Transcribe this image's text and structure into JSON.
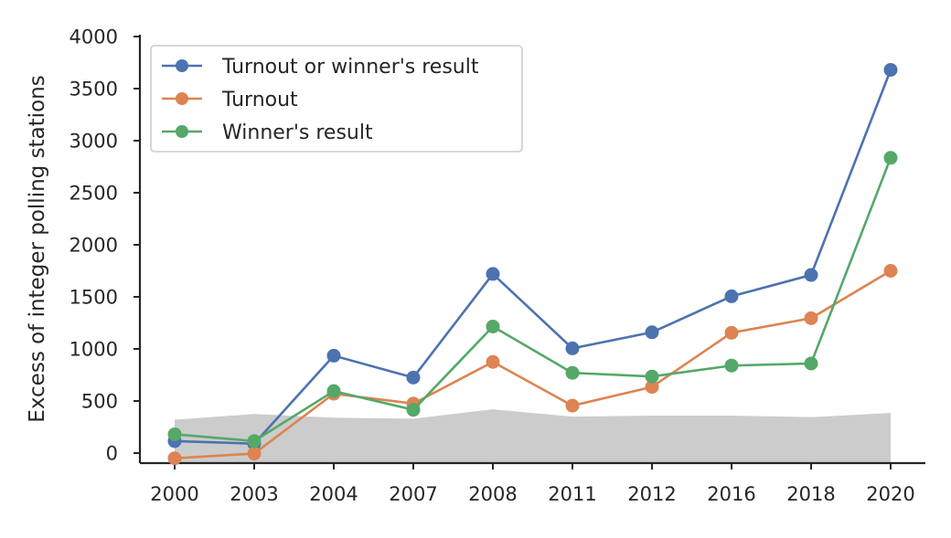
{
  "chart_data": {
    "type": "line",
    "title": "",
    "xlabel": "",
    "ylabel": "Excess of integer polling stations",
    "categories": [
      "2000",
      "2003",
      "2004",
      "2007",
      "2008",
      "2011",
      "2012",
      "2016",
      "2018",
      "2020"
    ],
    "ylim": [
      -100,
      4000
    ],
    "yticks": [
      0,
      500,
      1000,
      1500,
      2000,
      2500,
      3000,
      3500,
      4000
    ],
    "ytick_labels": [
      "0",
      "500",
      "1000",
      "1500",
      "2000",
      "2500",
      "3000",
      "3500",
      "4000"
    ],
    "grid": false,
    "legend_position": "top-left",
    "series": [
      {
        "name": "Turnout or winner's result",
        "color": "#4c72b0",
        "values": [
          115,
          90,
          935,
          725,
          1720,
          1005,
          1160,
          1505,
          1710,
          3680
        ]
      },
      {
        "name": "Turnout",
        "color": "#dd8452",
        "values": [
          -50,
          -5,
          570,
          475,
          875,
          455,
          635,
          1155,
          1295,
          1750
        ]
      },
      {
        "name": "Winner's result",
        "color": "#55a868",
        "values": [
          180,
          115,
          595,
          415,
          1215,
          770,
          735,
          840,
          860,
          2835
        ]
      }
    ],
    "band": {
      "color": "#cccccc",
      "values": [
        320,
        375,
        340,
        330,
        420,
        350,
        360,
        360,
        345,
        385
      ]
    }
  }
}
